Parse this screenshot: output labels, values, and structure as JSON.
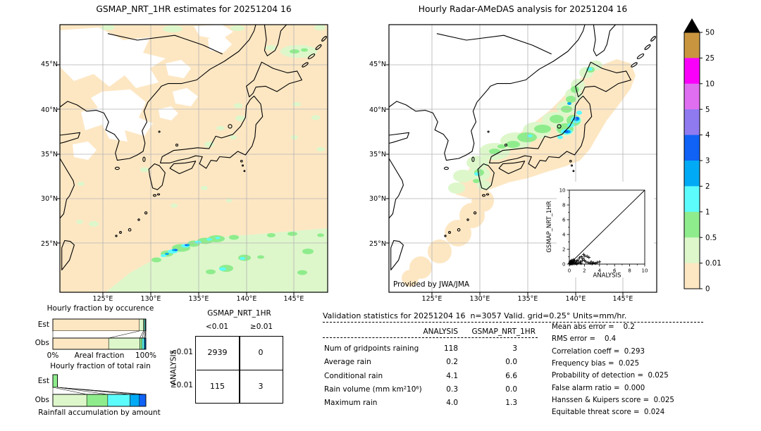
{
  "left_map": {
    "title": "GSMAP_NRT_1HR estimates for 20251204 16",
    "lat_ticks": [
      "45°N",
      "40°N",
      "35°N",
      "30°N",
      "25°N"
    ],
    "lon_ticks": [
      "125°E",
      "130°E",
      "135°E",
      "140°E",
      "145°E"
    ]
  },
  "right_map": {
    "title": "Hourly Radar-AMeDAS analysis for 20251204 16",
    "lat_ticks": [
      "45°N",
      "40°N",
      "35°N",
      "30°N",
      "25°N"
    ],
    "lon_ticks": [
      "125°E",
      "130°E",
      "135°E",
      "140°E",
      "145°E"
    ],
    "credit": "Provided by JWA/JMA"
  },
  "colorbar": {
    "labels": [
      "50",
      "25",
      "10",
      "5",
      "4",
      "3",
      "2",
      "1",
      "0.5",
      "0.01",
      "0"
    ],
    "colors": [
      "#c9963f",
      "#fa00fa",
      "#e06ef0",
      "#8f7af0",
      "#0f62f5",
      "#00aaf5",
      "#5cfcfc",
      "#8fec8c",
      "#ddf7cb",
      "#fde7c3"
    ],
    "overflow_marker": "black-triangle"
  },
  "contingency": {
    "col_group": "GSMAP_NRT_1HR",
    "row_group": "ANALYSIS",
    "col_labels": [
      "<0.01",
      "≥0.01"
    ],
    "row_labels": [
      "<0.01",
      "≥0.01"
    ],
    "values": [
      [
        "2939",
        "0"
      ],
      [
        "115",
        "3"
      ]
    ]
  },
  "validation": {
    "title": "Validation statistics for 20251204 16  n=3057 Valid. grid=0.25° Units=mm/hr.",
    "col1": "ANALYSIS",
    "col2": "GSMAP_NRT_1HR",
    "rows": [
      {
        "label": "Num of gridpoints raining",
        "analysis": "118",
        "gsmap": "3"
      },
      {
        "label": "Average rain",
        "analysis": "0.2",
        "gsmap": "0.0"
      },
      {
        "label": "Conditional rain",
        "analysis": "4.1",
        "gsmap": "6.6"
      },
      {
        "label": "Rain volume (mm km²10⁶)",
        "analysis": "0.3",
        "gsmap": "0.0"
      },
      {
        "label": "Maximum rain",
        "analysis": "4.0",
        "gsmap": "1.3"
      }
    ],
    "scores": [
      "Mean abs error =    0.2",
      "RMS error =    0.4",
      "Correlation coeff =  0.293",
      "Frequency bias =  0.025",
      "Probability of detection =  0.025",
      "False alarm ratio =  0.000",
      "Hanssen & Kuipers score =  0.025",
      "Equitable threat score =  0.024"
    ]
  },
  "chart_data": [
    {
      "type": "bar",
      "id": "hourly-fraction-by-occurrence",
      "title": "Hourly fraction by occurence",
      "categories": [
        "Est",
        "Obs"
      ],
      "xlabel": "Areal fraction",
      "xtick_left": "0%",
      "xtick_right": "100%",
      "stacked": true,
      "series": [
        {
          "name": "<0.01",
          "color": "#fde7c3",
          "values": [
            0.93,
            0.6
          ]
        },
        {
          "name": "0.01-0.5",
          "color": "#ddf7cb",
          "values": [
            0.045,
            0.335
          ]
        },
        {
          "name": "0.5-1",
          "color": "#8fec8c",
          "values": [
            0.008,
            0.025
          ]
        },
        {
          "name": "1-2",
          "color": "#5cfcfc",
          "values": [
            0.01,
            0.022
          ]
        },
        {
          "name": "2-3",
          "color": "#00aaf5",
          "values": [
            0.004,
            0.01
          ]
        },
        {
          "name": "3-4",
          "color": "#0f62f5",
          "values": [
            0.003,
            0.008
          ]
        }
      ]
    },
    {
      "type": "bar",
      "id": "hourly-fraction-of-total-rain",
      "title": "Hourly fraction of total rain",
      "categories": [
        "Est",
        "Obs"
      ],
      "xlabel": "Rainfall accumulation by amount",
      "stacked": true,
      "series": [
        {
          "name": "0.01-0.5",
          "color": "#ddf7cb",
          "values": [
            0.0,
            0.365
          ]
        },
        {
          "name": "0.5-1",
          "color": "#8fec8c",
          "values": [
            0.05,
            0.225
          ]
        },
        {
          "name": "1-2",
          "color": "#5cfcfc",
          "values": [
            0.0,
            0.24
          ]
        },
        {
          "name": "2-3",
          "color": "#00aaf5",
          "values": [
            0.0,
            0.1
          ]
        },
        {
          "name": "3-4",
          "color": "#0f62f5",
          "values": [
            0.0,
            0.07
          ]
        }
      ]
    },
    {
      "type": "scatter",
      "id": "analysis-vs-gsmap-inset",
      "xlabel": "ANALYSIS",
      "ylabel": "GSMAP_NRT_1HR",
      "xlim": [
        0,
        10
      ],
      "ylim": [
        0,
        10
      ],
      "ticks": [
        "0",
        "2",
        "4",
        "6",
        "8",
        "10"
      ],
      "diagonal": true,
      "marker": "+",
      "points": [
        [
          0.05,
          0.03
        ],
        [
          0.08,
          0.1
        ],
        [
          0.12,
          0.05
        ],
        [
          0.15,
          0.18
        ],
        [
          0.2,
          0.08
        ],
        [
          0.22,
          0.25
        ],
        [
          0.28,
          0.05
        ],
        [
          0.3,
          0.32
        ],
        [
          0.35,
          0.12
        ],
        [
          0.4,
          0.05
        ],
        [
          0.42,
          0.3
        ],
        [
          0.5,
          0.1
        ],
        [
          0.52,
          0.42
        ],
        [
          0.6,
          0.2
        ],
        [
          0.65,
          0.05
        ],
        [
          0.7,
          0.5
        ],
        [
          0.78,
          0.12
        ],
        [
          0.85,
          0.3
        ],
        [
          0.9,
          0.08
        ],
        [
          1.0,
          0.42
        ],
        [
          1.05,
          0.1
        ],
        [
          1.15,
          0.55
        ],
        [
          1.25,
          0.2
        ],
        [
          1.35,
          0.85
        ],
        [
          1.45,
          0.3
        ],
        [
          1.55,
          0.1
        ],
        [
          1.6,
          1.0
        ],
        [
          1.7,
          0.45
        ],
        [
          1.8,
          0.75
        ],
        [
          1.9,
          1.3
        ],
        [
          2.0,
          0.5
        ],
        [
          2.05,
          1.1
        ],
        [
          2.2,
          0.3
        ],
        [
          2.35,
          1.05
        ],
        [
          2.5,
          0.2
        ],
        [
          2.6,
          0.9
        ],
        [
          2.75,
          0.12
        ],
        [
          2.9,
          0.3
        ],
        [
          3.05,
          0.1
        ],
        [
          3.2,
          0.18
        ],
        [
          3.45,
          0.1
        ],
        [
          3.7,
          0.22
        ],
        [
          4.0,
          0.3
        ],
        [
          0.1,
          0.3
        ],
        [
          0.18,
          0.4
        ],
        [
          0.32,
          0.5
        ],
        [
          0.55,
          0.6
        ],
        [
          0.05,
          0.15
        ]
      ]
    }
  ]
}
